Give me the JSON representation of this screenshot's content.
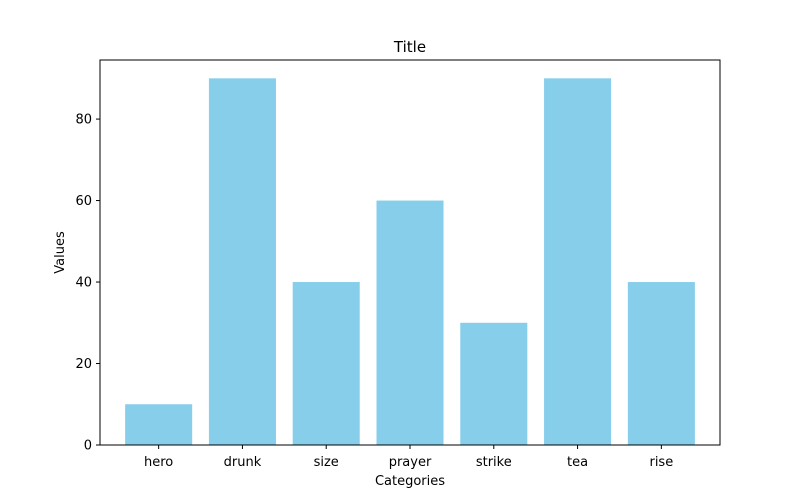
{
  "chart_data": {
    "type": "bar",
    "title": "Title",
    "xlabel": "Categories",
    "ylabel": "Values",
    "categories": [
      "hero",
      "drunk",
      "size",
      "prayer",
      "strike",
      "tea",
      "rise"
    ],
    "values": [
      10,
      90,
      40,
      60,
      30,
      90,
      40
    ],
    "ylim": [
      0,
      94.5
    ],
    "yticks": [
      0,
      20,
      40,
      60,
      80
    ],
    "grid": false,
    "bar_color": "#87ceeb"
  }
}
